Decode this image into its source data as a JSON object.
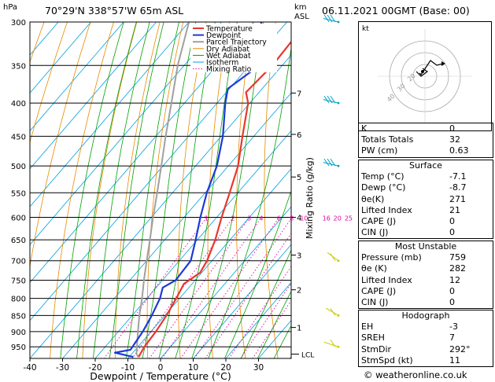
{
  "header": {
    "location": "70°29'N  338°57'W  65m  ASL",
    "datetime": "06.11.2021  00GMT  (Base: 00)",
    "hpa_unit": "hPa",
    "km_unit": "km",
    "asl_unit": "ASL"
  },
  "chart_data": {
    "type": "skew-t",
    "xlabel": "Dewpoint / Temperature (°C)",
    "ylabel_right": "Mixing Ratio (g/kg)",
    "x_ticks": [
      -40,
      -30,
      -20,
      -10,
      0,
      10,
      20,
      30
    ],
    "xlim": [
      -40,
      40
    ],
    "pressure_levels": [
      300,
      350,
      400,
      450,
      500,
      550,
      600,
      650,
      700,
      750,
      800,
      850,
      900,
      950
    ],
    "ylim_hpa": [
      990,
      300
    ],
    "km_ticks": [
      {
        "label": "1",
        "p": 887
      },
      {
        "label": "2",
        "p": 776
      },
      {
        "label": "3",
        "p": 686
      },
      {
        "label": "4",
        "p": 600
      },
      {
        "label": "5",
        "p": 520
      },
      {
        "label": "6",
        "p": 447
      },
      {
        "label": "7",
        "p": 386
      }
    ],
    "lcl_label": "LCL",
    "lcl_p": 975,
    "mixing_ratio_labels": [
      "1",
      "2",
      "3",
      "4",
      "6",
      "8",
      "10",
      "16",
      "20",
      "25"
    ],
    "mixing_ratio_values": [
      1,
      2,
      3,
      4,
      6,
      8,
      10,
      16,
      20,
      25
    ],
    "legend": [
      "Temperature",
      "Dewpoint",
      "Parcel Trajectory",
      "Dry Adiabat",
      "Wet Adiabat",
      "Isotherm",
      "Mixing Ratio"
    ],
    "colors": {
      "temperature": "#e8372e",
      "dewpoint": "#1c3ad8",
      "parcel": "#a0a0a0",
      "dry_adiabat": "#e88a00",
      "wet_adiabat": "#00a000",
      "isotherm": "#00a0e0",
      "mixing_ratio": "#e000a0"
    },
    "temperature": [
      {
        "p": 985,
        "t": -7.1
      },
      {
        "p": 950,
        "t": -8.0
      },
      {
        "p": 900,
        "t": -8.5
      },
      {
        "p": 850,
        "t": -9.5
      },
      {
        "p": 800,
        "t": -11.0
      },
      {
        "p": 760,
        "t": -12.5
      },
      {
        "p": 730,
        "t": -10.5
      },
      {
        "p": 700,
        "t": -11.5
      },
      {
        "p": 650,
        "t": -14.5
      },
      {
        "p": 600,
        "t": -18.5
      },
      {
        "p": 550,
        "t": -22.5
      },
      {
        "p": 500,
        "t": -27.0
      },
      {
        "p": 450,
        "t": -33.5
      },
      {
        "p": 400,
        "t": -40.5
      },
      {
        "p": 385,
        "t": -44.0
      },
      {
        "p": 350,
        "t": -43.0
      },
      {
        "p": 320,
        "t": -43.5
      },
      {
        "p": 300,
        "t": -45.5
      }
    ],
    "dewpoint": [
      {
        "p": 985,
        "t": -8.7
      },
      {
        "p": 970,
        "t": -15.5
      },
      {
        "p": 960,
        "t": -11.5
      },
      {
        "p": 900,
        "t": -12.5
      },
      {
        "p": 850,
        "t": -14.0
      },
      {
        "p": 800,
        "t": -16.0
      },
      {
        "p": 770,
        "t": -18.0
      },
      {
        "p": 750,
        "t": -16.0
      },
      {
        "p": 700,
        "t": -16.5
      },
      {
        "p": 650,
        "t": -20.5
      },
      {
        "p": 600,
        "t": -25.0
      },
      {
        "p": 550,
        "t": -29.5
      },
      {
        "p": 500,
        "t": -33.5
      },
      {
        "p": 450,
        "t": -39.5
      },
      {
        "p": 400,
        "t": -47.5
      },
      {
        "p": 380,
        "t": -50.5
      },
      {
        "p": 350,
        "t": -47.0
      },
      {
        "p": 330,
        "t": -47.5
      },
      {
        "p": 300,
        "t": -58.0
      }
    ],
    "parcel": [
      {
        "p": 985,
        "t": -7.1
      },
      {
        "p": 975,
        "t": -8.5
      },
      {
        "p": 900,
        "t": -14.0
      },
      {
        "p": 850,
        "t": -17.8
      },
      {
        "p": 800,
        "t": -21.5
      },
      {
        "p": 750,
        "t": -25.7
      },
      {
        "p": 700,
        "t": -30.0
      },
      {
        "p": 650,
        "t": -34.5
      },
      {
        "p": 600,
        "t": -39.5
      },
      {
        "p": 550,
        "t": -44.7
      },
      {
        "p": 500,
        "t": -50.5
      },
      {
        "p": 450,
        "t": -57.0
      },
      {
        "p": 400,
        "t": -64.0
      },
      {
        "p": 350,
        "t": -72.0
      },
      {
        "p": 300,
        "t": -80.0
      }
    ],
    "wind_barbs": [
      {
        "p": 300,
        "dir": 292,
        "spd": 25
      },
      {
        "p": 400,
        "dir": 292,
        "spd": 30
      },
      {
        "p": 500,
        "dir": 292,
        "spd": 35
      },
      {
        "p": 700,
        "dir": 330,
        "spd": 10
      },
      {
        "p": 850,
        "dir": 320,
        "spd": 10
      },
      {
        "p": 950,
        "dir": 300,
        "spd": 10
      }
    ]
  },
  "hodograph": {
    "unit_label": "kt",
    "ring_labels": [
      "40",
      "30",
      "20"
    ]
  },
  "indices": {
    "rows": [
      {
        "label": "K",
        "value": "0"
      },
      {
        "label": "Totals Totals",
        "value": "32"
      },
      {
        "label": "PW (cm)",
        "value": "0.63"
      }
    ]
  },
  "surface": {
    "title": "Surface",
    "rows": [
      {
        "label": "Temp (°C)",
        "value": "-7.1"
      },
      {
        "label": "Dewp (°C)",
        "value": "-8.7"
      },
      {
        "label": "θe(K)",
        "value": "271"
      },
      {
        "label": "Lifted Index",
        "value": "21"
      },
      {
        "label": "CAPE (J)",
        "value": "0"
      },
      {
        "label": "CIN (J)",
        "value": "0"
      }
    ]
  },
  "most_unstable": {
    "title": "Most Unstable",
    "rows": [
      {
        "label": "Pressure (mb)",
        "value": "759"
      },
      {
        "label": "θe (K)",
        "value": "282"
      },
      {
        "label": "Lifted Index",
        "value": "12"
      },
      {
        "label": "CAPE (J)",
        "value": "0"
      },
      {
        "label": "CIN (J)",
        "value": "0"
      }
    ]
  },
  "hodograph_table": {
    "title": "Hodograph",
    "rows": [
      {
        "label": "EH",
        "value": "-3"
      },
      {
        "label": "SREH",
        "value": "7"
      },
      {
        "label": "StmDir",
        "value": "292°"
      },
      {
        "label": "StmSpd (kt)",
        "value": "11"
      }
    ]
  },
  "footer": {
    "credit": "© weatheronline.co.uk"
  }
}
